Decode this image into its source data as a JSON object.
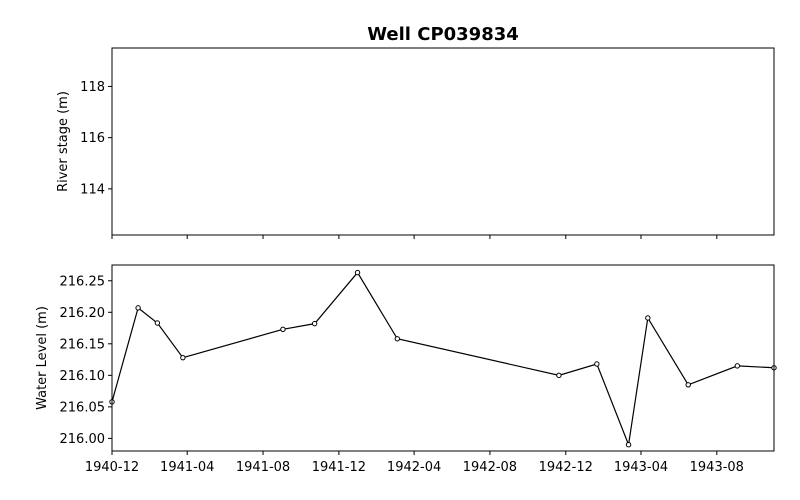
{
  "chart_data": [
    {
      "type": "line",
      "title": "Well CP039834",
      "ylabel": "River stage (m)",
      "ylim": [
        112.2,
        119.5
      ],
      "yticks": [
        114,
        116,
        118
      ],
      "ytick_labels": [
        "114",
        "116",
        "118"
      ],
      "series": []
    },
    {
      "type": "line",
      "title": "",
      "ylabel": "Water Level (m)",
      "xlim": [
        "1940-12-01",
        "1943-11-01"
      ],
      "ylim": [
        215.98,
        216.275
      ],
      "yticks": [
        216.0,
        216.05,
        216.1,
        216.15,
        216.2,
        216.25
      ],
      "ytick_labels": [
        "216.00",
        "216.05",
        "216.10",
        "216.15",
        "216.20",
        "216.25"
      ],
      "xticks": [
        "1940-12-01",
        "1941-04-01",
        "1941-08-01",
        "1941-12-01",
        "1942-04-01",
        "1942-08-01",
        "1942-12-01",
        "1943-04-01",
        "1943-08-01"
      ],
      "xtick_labels": [
        "1940-12",
        "1941-04",
        "1941-08",
        "1941-12",
        "1942-04",
        "1942-08",
        "1942-12",
        "1943-04",
        "1943-08"
      ],
      "color": "#000000",
      "marker": "circle-open",
      "series": [
        {
          "x": [
            "1940-12-01",
            "1941-01-12",
            "1941-02-12",
            "1941-03-25",
            "1941-09-02",
            "1941-10-23",
            "1941-12-31",
            "1942-03-05",
            "1942-11-20",
            "1943-01-20",
            "1943-03-12",
            "1943-04-12",
            "1943-06-16",
            "1943-09-03",
            "1943-11-01"
          ],
          "y": [
            216.058,
            216.207,
            216.183,
            216.128,
            216.173,
            216.182,
            216.263,
            216.158,
            216.1,
            216.118,
            215.99,
            216.191,
            216.085,
            216.115,
            216.112
          ]
        }
      ]
    }
  ]
}
